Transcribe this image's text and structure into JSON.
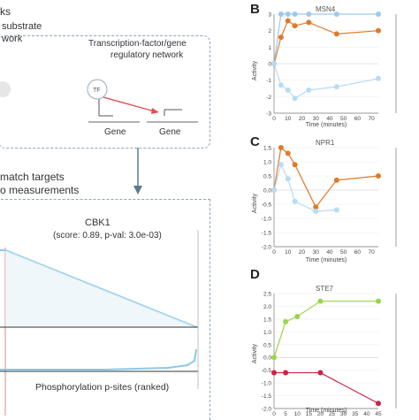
{
  "left": {
    "fragment_top": "ks",
    "network1_line1": "substrate",
    "network1_line2": "work",
    "network2_line1": "Transcription-factor/gene",
    "network2_line2": "regulatory network",
    "tf_label": "TF",
    "gene1": "Gene",
    "gene2": "Gene",
    "match_line1": "match targets",
    "match_line2": "o measurements",
    "cbk_title": "CBK1",
    "cbk_sub": "(score: 0.89, p-val: 3.0e-03)",
    "xaxis_label": "Phosphorylation p-sites (ranked)",
    "colors": {
      "dash": "#8fa6b6",
      "arrow": "#5a7a90",
      "curve": "#8cc8e8",
      "red": "#e05050"
    }
  },
  "panels": {
    "B": {
      "letter": "B",
      "title": "MSN4"
    },
    "C": {
      "letter": "C",
      "title": "NPR1"
    },
    "D": {
      "letter": "D",
      "title": "STE7"
    }
  },
  "axis": {
    "ylabel": "Activity",
    "xlabel": "Time (minutes)"
  },
  "chart_data": [
    {
      "type": "line",
      "title": "MSN4",
      "xlabel": "Time (minutes)",
      "ylabel": "Activity",
      "xlim": [
        0,
        75
      ],
      "ylim": [
        -3,
        3
      ],
      "xticks": [
        0,
        10,
        20,
        30,
        40,
        50,
        60,
        70
      ],
      "yticks": [
        -3,
        -2,
        -1,
        0,
        1,
        2,
        3
      ],
      "series": [
        {
          "color": "#9ec9ec",
          "x": [
            0,
            5,
            10,
            15,
            25,
            45,
            75
          ],
          "y": [
            0,
            3,
            3,
            3,
            3,
            3,
            3
          ]
        },
        {
          "color": "#e07a2a",
          "x": [
            0,
            5,
            10,
            15,
            25,
            45,
            75
          ],
          "y": [
            0,
            1.6,
            2.6,
            2.3,
            2.5,
            1.8,
            2.0
          ]
        },
        {
          "color": "#b8dcf4",
          "x": [
            0,
            5,
            10,
            15,
            25,
            45,
            75
          ],
          "y": [
            0,
            -1.3,
            -1.6,
            -2.1,
            -1.6,
            -1.4,
            -0.9
          ]
        }
      ]
    },
    {
      "type": "line",
      "title": "NPR1",
      "xlabel": "Time (minutes)",
      "ylabel": "Activity",
      "xlim": [
        0,
        75
      ],
      "ylim": [
        -2.0,
        1.5
      ],
      "xticks": [
        0,
        10,
        20,
        30,
        40,
        50,
        60,
        70
      ],
      "yticks": [
        -2.0,
        -1.5,
        -1.0,
        -0.5,
        0.0,
        0.5,
        1.0,
        1.5
      ],
      "series": [
        {
          "color": "#e07a2a",
          "x": [
            0,
            5,
            10,
            15,
            30,
            45,
            75
          ],
          "y": [
            0,
            1.5,
            1.3,
            0.9,
            -0.6,
            0.35,
            0.5
          ]
        },
        {
          "color": "#b8dcf4",
          "x": [
            0,
            5,
            10,
            15,
            30,
            45
          ],
          "y": [
            0,
            0.9,
            0.4,
            -0.4,
            -0.75,
            -0.7
          ]
        }
      ]
    },
    {
      "type": "line",
      "title": "STE7",
      "xlabel": "Time (minutes)",
      "ylabel": "Activity",
      "xlim": [
        0,
        45
      ],
      "ylim": [
        -2.0,
        2.5
      ],
      "xticks": [
        0,
        5,
        10,
        15,
        20,
        25,
        30,
        35,
        40,
        45
      ],
      "yticks": [
        -2.0,
        -1.5,
        -1.0,
        -0.5,
        0.0,
        0.5,
        1.0,
        1.5,
        2.0,
        2.5
      ],
      "series": [
        {
          "color": "#9bd44a",
          "x": [
            0,
            5,
            10,
            20,
            45
          ],
          "y": [
            0,
            1.4,
            1.6,
            2.2,
            2.2
          ]
        },
        {
          "color": "#cc2244",
          "x": [
            0,
            5,
            20,
            45
          ],
          "y": [
            -0.6,
            -0.6,
            -0.6,
            -1.8
          ]
        }
      ]
    }
  ]
}
